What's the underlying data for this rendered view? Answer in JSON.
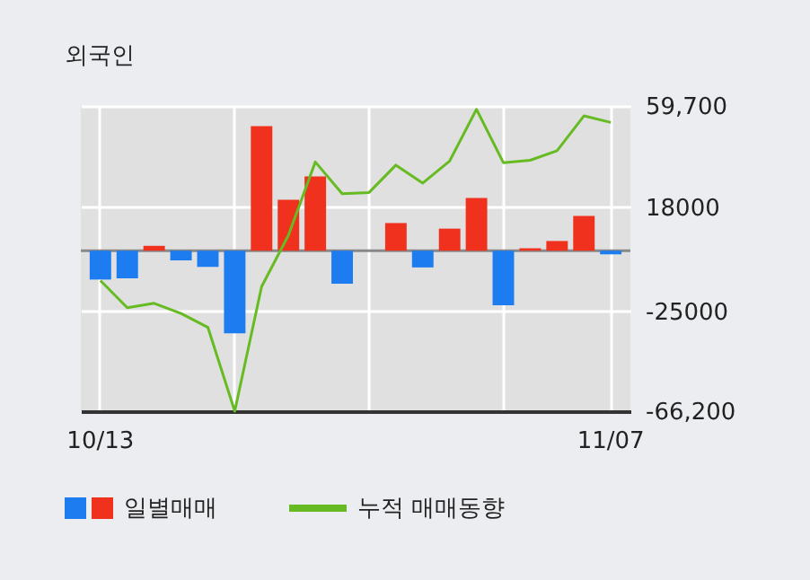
{
  "chart_data": {
    "type": "bar",
    "title": "외국인",
    "categories": [
      "10/13",
      null,
      null,
      null,
      null,
      null,
      null,
      null,
      null,
      null,
      null,
      null,
      null,
      null,
      null,
      null,
      null,
      null,
      null,
      "11/07"
    ],
    "series": [
      {
        "name": "일별매매",
        "colors": [
          "#1d7cf0",
          "#1d7cf0",
          "#f0311d",
          "#1d7cf0",
          "#1d7cf0",
          "#1d7cf0",
          "#f0311d",
          "#f0311d",
          "#f0311d",
          "#1d7cf0",
          "#f0311d",
          "#f0311d",
          "#1d7cf0",
          "#f0311d",
          "#f0311d",
          "#1d7cf0",
          "#f0311d",
          "#f0311d",
          "#f0311d",
          "#1d7cf0"
        ],
        "values": [
          -11900,
          -11400,
          2000,
          -4000,
          -6700,
          -34100,
          51400,
          21000,
          30600,
          -13600,
          0,
          11400,
          -6900,
          9100,
          21700,
          -22500,
          1000,
          4000,
          14300,
          -1500
        ]
      },
      {
        "name": "누적 매매동향",
        "type": "line",
        "color": "#66bb22",
        "values": [
          -12300,
          -23500,
          -21700,
          -25900,
          -31600,
          -66200,
          -14800,
          6400,
          36600,
          23500,
          24000,
          35300,
          27900,
          37000,
          58300,
          36300,
          37300,
          41200,
          55600,
          52900
        ]
      }
    ],
    "ylim": [
      -66200,
      59700
    ],
    "yticks": [
      {
        "value": -66200,
        "label": "-66,200"
      },
      -25000,
      18000,
      {
        "value": 59700,
        "label": "59,700"
      }
    ],
    "ref_lines": [
      {
        "axis": "y",
        "value": 0,
        "color": "#888888"
      }
    ],
    "grid": true,
    "legend": "bottom",
    "marker": "none",
    "line_style": "solid"
  }
}
